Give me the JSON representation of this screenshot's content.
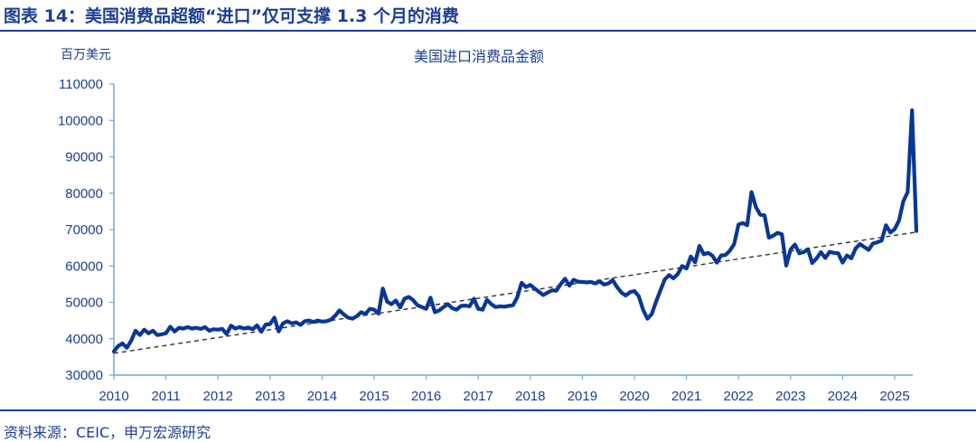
{
  "header": {
    "title": "图表 14：美国消费品超额“进口”仅可支撑 1.3 个月的消费"
  },
  "footer": {
    "source": "资料来源：CEIC，申万宏源研究"
  },
  "colors": {
    "brand": "#1c3f94",
    "series_line": "#0a3696",
    "axis": "#6fa8dc",
    "trend_line": "#333333"
  },
  "chart_data": {
    "type": "line",
    "title": "美国进口消费品金额",
    "ylabel": "百万美元",
    "xlabel": "",
    "ylim": [
      30000,
      110000
    ],
    "yticks": [
      30000,
      40000,
      50000,
      60000,
      70000,
      80000,
      90000,
      100000,
      110000
    ],
    "xticks": [
      "2010",
      "2011",
      "2012",
      "2013",
      "2014",
      "2015",
      "2016",
      "2017",
      "2018",
      "2019",
      "2020",
      "2021",
      "2022",
      "2023",
      "2024",
      "2025"
    ],
    "grid": false,
    "legend": null,
    "x_start": "2010-01",
    "frequency": "monthly",
    "series": [
      {
        "name": "美国进口消费品金额",
        "style": "solid thick",
        "values": [
          36500,
          38000,
          38700,
          37500,
          39500,
          42200,
          41000,
          42500,
          41500,
          42200,
          41000,
          41200,
          41500,
          43300,
          42000,
          43000,
          42800,
          43200,
          42800,
          43000,
          42700,
          43200,
          42200,
          42600,
          42500,
          42700,
          41300,
          43600,
          42800,
          43200,
          42800,
          43100,
          42600,
          43700,
          41900,
          43900,
          44000,
          45800,
          42000,
          44200,
          44800,
          44200,
          44500,
          43800,
          44800,
          45000,
          44600,
          45000,
          44700,
          44800,
          45200,
          46300,
          47800,
          46700,
          45800,
          45500,
          46200,
          47300,
          46800,
          48200,
          48000,
          46900,
          53800,
          50200,
          49500,
          50500,
          48600,
          51000,
          51500,
          50600,
          49200,
          48700,
          48200,
          51300,
          47300,
          47800,
          48700,
          49500,
          48400,
          48000,
          49000,
          49100,
          48900,
          51000,
          48200,
          48000,
          50700,
          49500,
          48700,
          48900,
          48800,
          49000,
          49200,
          51400,
          55400,
          54200,
          54800,
          53800,
          52900,
          52000,
          52700,
          53300,
          53200,
          55000,
          56500,
          54600,
          56200,
          55700,
          55600,
          55500,
          55600,
          55200,
          55800,
          54900,
          55200,
          56100,
          54200,
          52700,
          51900,
          52800,
          53100,
          51700,
          48000,
          45500,
          46800,
          50200,
          53300,
          56300,
          57500,
          56600,
          57800,
          60000,
          59300,
          62600,
          61000,
          65500,
          63200,
          63600,
          62800,
          60900,
          62900,
          63000,
          64200,
          66000,
          71400,
          71800,
          71200,
          80300,
          76200,
          74100,
          73900,
          67800,
          68300,
          69100,
          68700,
          60100,
          64500,
          65900,
          63500,
          63800,
          64600,
          60800,
          62100,
          63800,
          62200,
          63900,
          63600,
          63500,
          60900,
          62900,
          62100,
          64800,
          66000,
          65200,
          64400,
          66200,
          66500,
          67000,
          71200,
          69200,
          70100,
          72500,
          77800,
          80300,
          102800,
          69600
        ]
      },
      {
        "name": "趋势线",
        "style": "dashed",
        "values": [
          36000,
          69300
        ],
        "x": [
          "2010-01",
          "2025-03"
        ]
      }
    ]
  }
}
